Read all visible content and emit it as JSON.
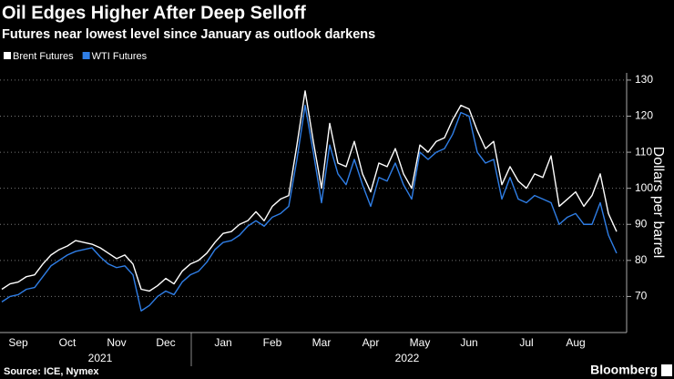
{
  "chart_data": {
    "type": "line",
    "title": "Oil Edges Higher After Deep Selloff",
    "subtitle": "Futures near lowest level since January as outlook darkens",
    "categories": [
      null,
      null,
      "Sep",
      null,
      null,
      null,
      null,
      null,
      "Oct",
      null,
      null,
      null,
      null,
      null,
      "Nov",
      null,
      null,
      null,
      null,
      null,
      "Dec",
      null,
      null,
      null,
      null,
      null,
      null,
      "Jan",
      null,
      null,
      null,
      null,
      null,
      "Feb",
      null,
      null,
      null,
      null,
      null,
      "Mar",
      null,
      null,
      null,
      null,
      null,
      "Apr",
      null,
      null,
      null,
      null,
      null,
      "May",
      null,
      null,
      null,
      null,
      null,
      "Jun",
      null,
      null,
      null,
      null,
      null,
      null,
      "Jul",
      null,
      null,
      null,
      null,
      null,
      "Aug",
      null,
      null,
      null,
      null,
      null
    ],
    "year_labels": [
      "2021",
      "2022"
    ],
    "series": [
      {
        "name": "Brent Futures",
        "color": "#ffffff",
        "values": [
          72,
          73.5,
          74,
          75.5,
          76,
          79,
          81.5,
          83,
          84,
          85.5,
          85,
          84.5,
          83.5,
          82,
          80.5,
          81.5,
          79,
          72,
          71.5,
          73,
          75,
          73.5,
          77,
          79,
          80,
          82,
          85,
          87.5,
          88,
          90,
          91,
          93.5,
          91,
          95,
          97,
          98,
          112,
          127,
          113,
          100,
          118,
          107,
          106,
          113,
          104,
          99,
          107,
          106,
          111,
          104,
          100,
          112,
          110,
          113,
          114,
          119,
          123,
          122,
          116,
          111,
          113,
          101,
          106,
          102,
          100,
          104,
          103,
          109,
          95,
          97,
          99,
          95,
          98,
          104,
          93,
          88
        ]
      },
      {
        "name": "WTI Futures",
        "color": "#2f7ee6",
        "values": [
          68.5,
          70,
          70.5,
          72,
          72.5,
          75.5,
          78.5,
          80,
          81.5,
          82.5,
          83,
          83.5,
          81,
          79,
          78,
          78.5,
          76,
          66,
          67.5,
          70,
          71.5,
          70.5,
          74,
          76,
          77,
          79.5,
          83,
          85,
          85.5,
          87,
          89.5,
          91,
          89.5,
          92,
          93,
          95,
          108,
          123,
          110,
          96,
          112,
          104,
          101,
          108,
          101,
          95,
          103,
          102,
          107,
          101,
          97,
          110,
          108,
          110,
          111,
          115,
          121,
          120,
          110,
          107,
          108,
          97,
          103,
          97,
          96,
          98,
          97,
          96,
          90,
          92,
          93,
          90,
          90,
          96,
          87,
          82
        ]
      }
    ],
    "ylim": [
      60,
      132
    ],
    "yticks": [
      70,
      80,
      90,
      100,
      110,
      120,
      130
    ],
    "y_label": "Dollars per barrel",
    "grid": true,
    "source": "Source: ICE, Nymex",
    "brand": "Bloomberg"
  }
}
